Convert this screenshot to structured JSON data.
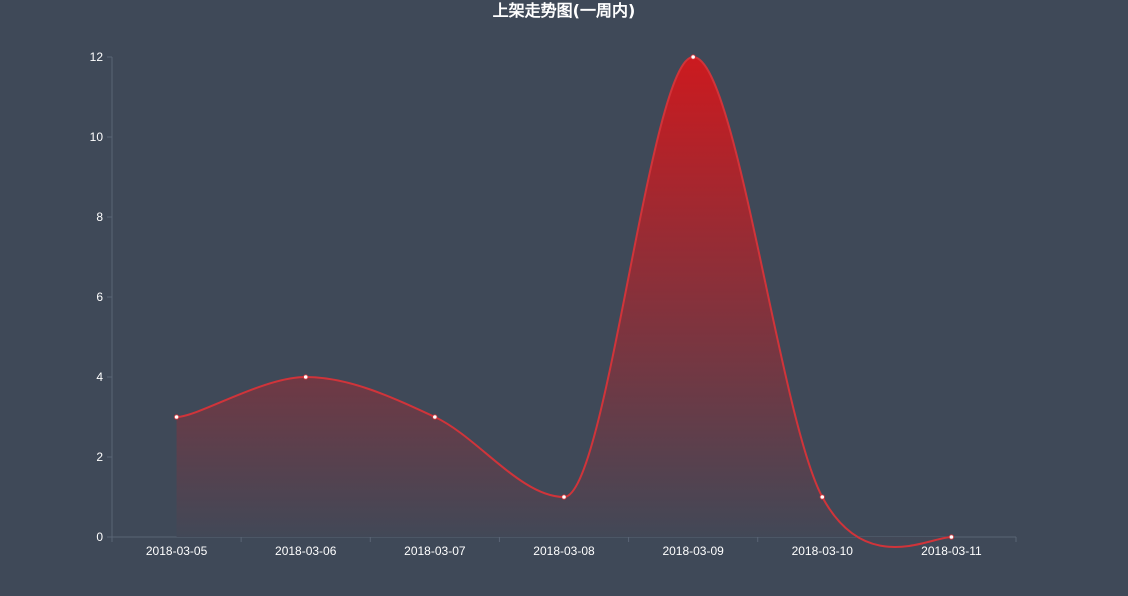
{
  "chart_data": {
    "type": "area",
    "title": "上架走势图(一周内)",
    "categories": [
      "2018-03-05",
      "2018-03-06",
      "2018-03-07",
      "2018-03-08",
      "2018-03-09",
      "2018-03-10",
      "2018-03-11"
    ],
    "series": [
      {
        "values": [
          3,
          4,
          3,
          1,
          12,
          1,
          0
        ]
      }
    ],
    "y_ticks": [
      "0",
      "2",
      "4",
      "6",
      "8",
      "10",
      "12"
    ],
    "ylim": [
      0,
      12
    ],
    "smooth": true,
    "grid": false,
    "colors": {
      "background": "#3f4958",
      "line": "#d0343a",
      "area_top": "#cc1a1f",
      "area_bottom": "#3f4958",
      "marker": "#ffffff",
      "axis": "#5a6575",
      "text": "#ffffff"
    }
  }
}
